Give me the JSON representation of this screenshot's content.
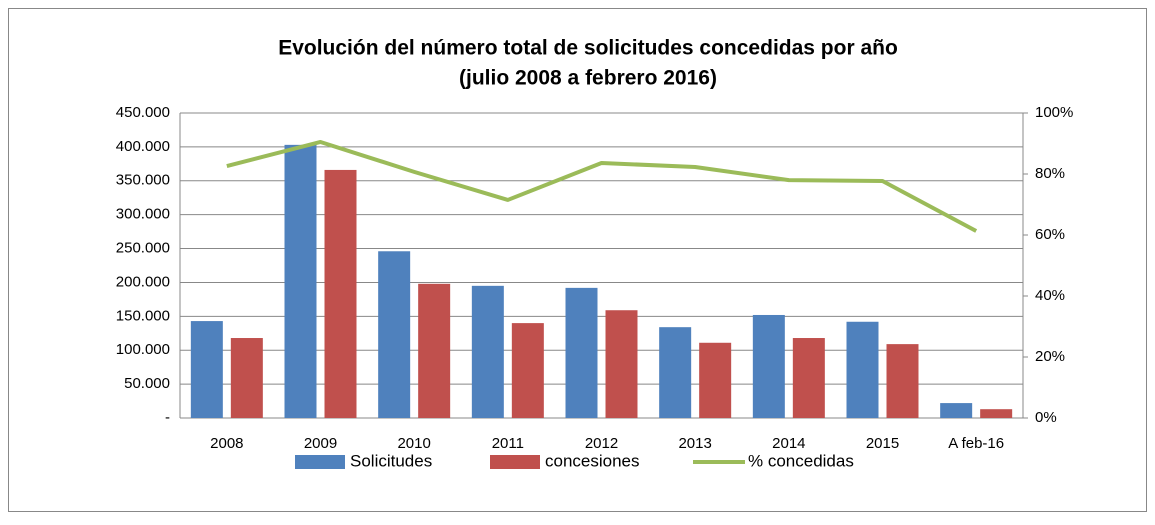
{
  "chart_data": {
    "type": "bar_line",
    "title": "Evolución del número total de solicitudes concedidas por año",
    "subtitle": "(julio 2008 a febrero 2016)",
    "categories": [
      "2008",
      "2009",
      "2010",
      "2011",
      "2012",
      "2013",
      "2014",
      "2015",
      "A feb-16"
    ],
    "series": [
      {
        "name": "Solicitudes",
        "color": "#4f81bd",
        "kind": "bar",
        "values": [
          143000,
          403000,
          246000,
          195000,
          192000,
          134000,
          152000,
          142000,
          22000
        ]
      },
      {
        "name": "concesiones",
        "color": "#c0504d",
        "kind": "bar",
        "values": [
          118000,
          366000,
          198000,
          140000,
          159000,
          111000,
          118000,
          109000,
          13000
        ]
      },
      {
        "name": "% concedidas",
        "color": "#9bbb59",
        "kind": "line",
        "axis": "y2",
        "values": [
          82.6,
          90.5,
          80.7,
          71.5,
          83.6,
          82.3,
          78,
          77.7,
          61.3
        ]
      }
    ],
    "ylim": [
      0,
      450000
    ],
    "yticks": [
      {
        "value": 0,
        "label": "-"
      },
      {
        "value": 50000,
        "label": "50.000"
      },
      {
        "value": 100000,
        "label": "100.000"
      },
      {
        "value": 150000,
        "label": "150.000"
      },
      {
        "value": 200000,
        "label": "200.000"
      },
      {
        "value": 250000,
        "label": "250.000"
      },
      {
        "value": 300000,
        "label": "300.000"
      },
      {
        "value": 350000,
        "label": "350.000"
      },
      {
        "value": 400000,
        "label": "400.000"
      },
      {
        "value": 450000,
        "label": "450.000"
      }
    ],
    "y2lim": [
      0,
      100
    ],
    "y2ticks": [
      {
        "value": 0,
        "label": "0%"
      },
      {
        "value": 20,
        "label": "20%"
      },
      {
        "value": 40,
        "label": "40%"
      },
      {
        "value": 60,
        "label": "60%"
      },
      {
        "value": 80,
        "label": "80%"
      },
      {
        "value": 100,
        "label": "100%"
      }
    ],
    "grid": true,
    "legend": "bottom"
  }
}
